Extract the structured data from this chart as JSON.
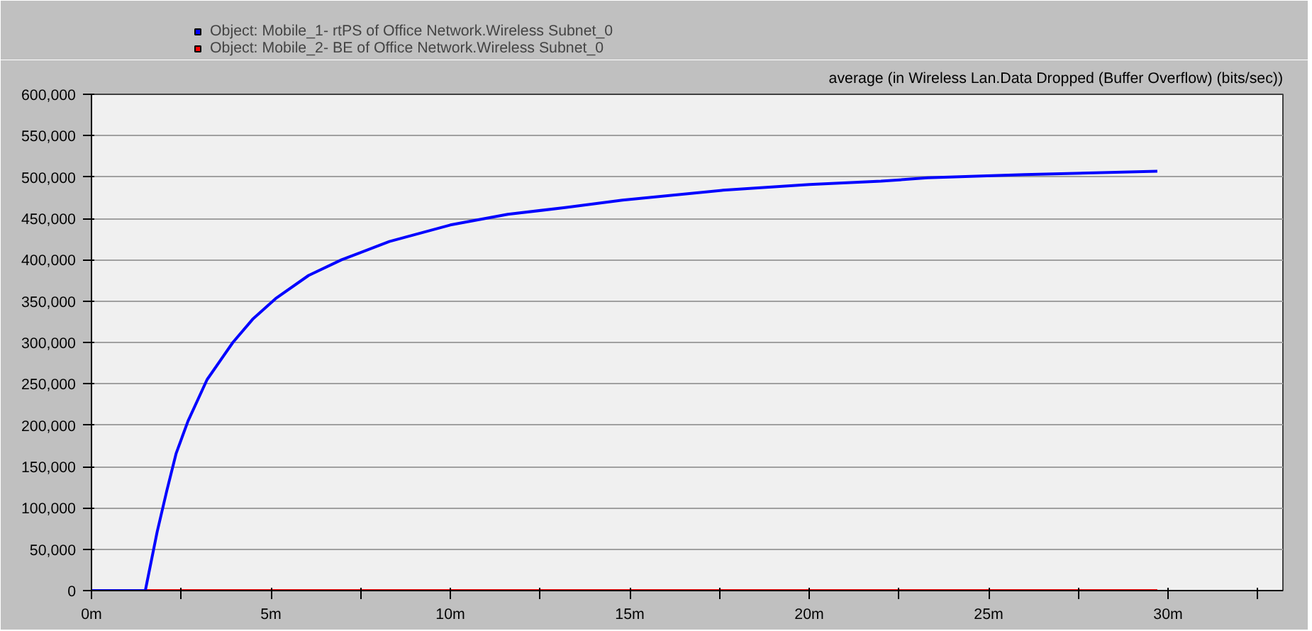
{
  "chart_data": {
    "type": "line",
    "title": "average (in Wireless Lan.Data Dropped (Buffer Overflow) (bits/sec))",
    "series": [
      {
        "name": "Object: Mobile_1- rtPS of Office Network.Wireless Subnet_0",
        "color": "#0000ff",
        "x": [
          0,
          1.5,
          1.83,
          2.1,
          2.36,
          2.69,
          3.22,
          3.94,
          4.49,
          5.13,
          6.05,
          6.97,
          8.3,
          10.0,
          11.6,
          13.2,
          14.8,
          17.6,
          20.0,
          22.0,
          23.3,
          26.0,
          29.7
        ],
        "values": [
          0,
          0,
          71000,
          121000,
          166000,
          205000,
          255000,
          300000,
          328000,
          353000,
          381000,
          400000,
          422000,
          442000,
          455000,
          463000,
          472000,
          484000,
          491000,
          495000,
          499000,
          503000,
          507000
        ]
      },
      {
        "name": "Object: Mobile_2- BE of Office Network.Wireless Subnet_0",
        "color": "#ff0000",
        "x": [
          0,
          29.7
        ],
        "values": [
          0,
          0
        ]
      }
    ],
    "xlim": [
      0,
      33.2
    ],
    "xticks": [
      {
        "value": 0,
        "label": "0m"
      },
      {
        "value": 2.5,
        "label": null
      },
      {
        "value": 5,
        "label": "5m"
      },
      {
        "value": 7.5,
        "label": null
      },
      {
        "value": 10,
        "label": "10m"
      },
      {
        "value": 12.5,
        "label": null
      },
      {
        "value": 15,
        "label": "15m"
      },
      {
        "value": 17.5,
        "label": null
      },
      {
        "value": 20,
        "label": "20m"
      },
      {
        "value": 22.5,
        "label": null
      },
      {
        "value": 25,
        "label": "25m"
      },
      {
        "value": 27.5,
        "label": null
      },
      {
        "value": 30,
        "label": "30m"
      },
      {
        "value": 32.5,
        "label": null
      }
    ],
    "ylim": [
      0,
      600000
    ],
    "yticks": [
      {
        "value": 0,
        "label": "0"
      },
      {
        "value": 50000,
        "label": "50,000"
      },
      {
        "value": 100000,
        "label": "100,000"
      },
      {
        "value": 150000,
        "label": "150,000"
      },
      {
        "value": 200000,
        "label": "200,000"
      },
      {
        "value": 250000,
        "label": "250,000"
      },
      {
        "value": 300000,
        "label": "300,000"
      },
      {
        "value": 350000,
        "label": "350,000"
      },
      {
        "value": 400000,
        "label": "400,000"
      },
      {
        "value": 450000,
        "label": "450,000"
      },
      {
        "value": 500000,
        "label": "500,000"
      },
      {
        "value": 550000,
        "label": "550,000"
      },
      {
        "value": 600000,
        "label": "600,000"
      }
    ],
    "grid": "y",
    "legend": "top left"
  }
}
